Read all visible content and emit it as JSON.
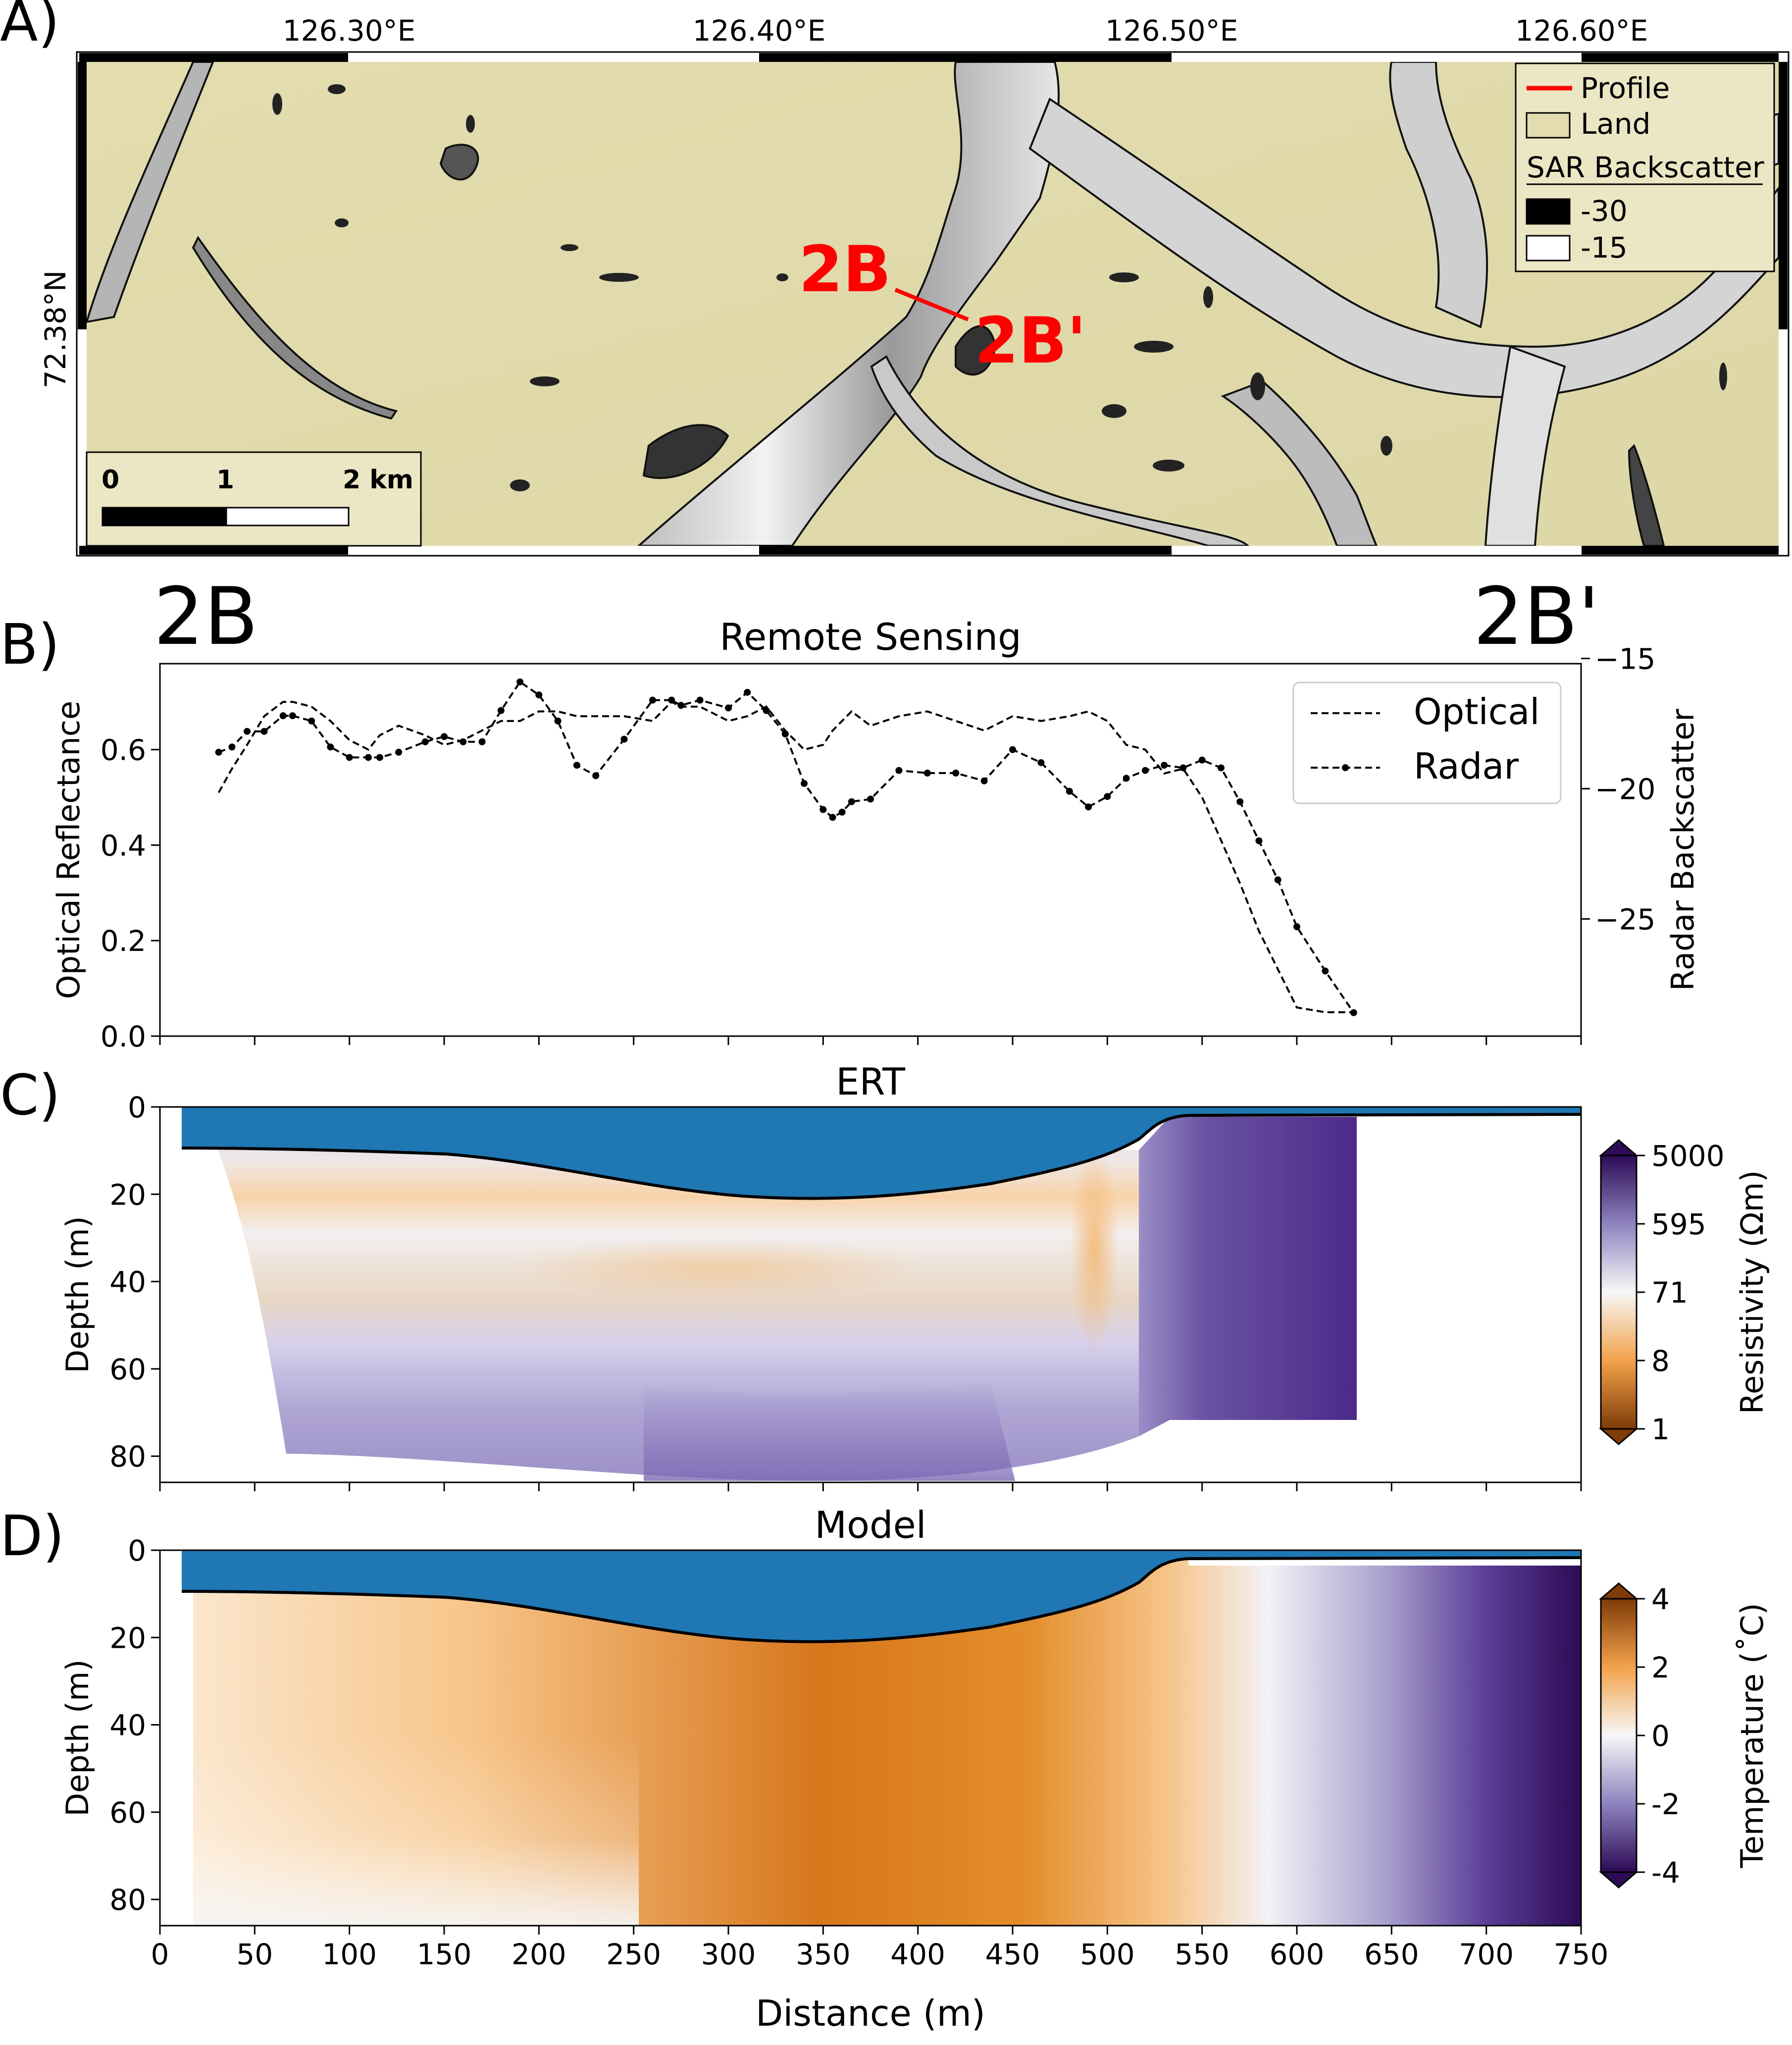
{
  "panels": {
    "a_label": "A)",
    "b_label": "B)",
    "c_label": "C)",
    "d_label": "D)"
  },
  "map": {
    "lon_ticks": [
      "126.30°E",
      "126.40°E",
      "126.50°E",
      "126.60°E"
    ],
    "lat_tick": "72.38°N",
    "profile_start": "2B",
    "profile_end": "2B'",
    "scalebar_labels": [
      "0",
      "1",
      "2 km"
    ],
    "legend": {
      "profile": "Profile",
      "land": "Land",
      "sar_title": "SAR Backscatter",
      "dark_value": "-30",
      "light_value": "-15"
    },
    "colors": {
      "land": "#e2dcae",
      "profile": "#ff0000"
    }
  },
  "endpoint_labels": {
    "start": "2B",
    "end": "2B'"
  },
  "chart_data": [
    {
      "type": "line",
      "title": "Remote Sensing",
      "xlabel": "",
      "ylabel": "Optical Reflectance",
      "y2label": "Radar Backscatter",
      "xlim": [
        0,
        750
      ],
      "ylim": [
        0,
        0.78
      ],
      "y2lim": [
        -29.5,
        -15.2
      ],
      "yticks": [
        0.0,
        0.2,
        0.4,
        0.6
      ],
      "ytick_labels": [
        "0.0",
        "0.2",
        "0.4",
        "0.6"
      ],
      "y2ticks": [
        -15,
        -20,
        -25
      ],
      "y2tick_labels": [
        "−15",
        "−20",
        "−25"
      ],
      "legend_position": "upper-right",
      "series": [
        {
          "name": "Optical",
          "axis": "left",
          "style": "dashed",
          "x": [
            31,
            38,
            46,
            55,
            65,
            70,
            80,
            90,
            100,
            110,
            116,
            126,
            140,
            150,
            160,
            170,
            180,
            190,
            200,
            210,
            220,
            230,
            245,
            260,
            270,
            275,
            285,
            300,
            310,
            320,
            330,
            340,
            350,
            355,
            360,
            365,
            375,
            390,
            405,
            420,
            435,
            450,
            465,
            480,
            490,
            500,
            510,
            520,
            530,
            540,
            550,
            560,
            570,
            580,
            590,
            600,
            615,
            630
          ],
          "y": [
            0.51,
            0.56,
            0.61,
            0.67,
            0.7,
            0.7,
            0.69,
            0.66,
            0.62,
            0.6,
            0.63,
            0.65,
            0.63,
            0.61,
            0.62,
            0.64,
            0.66,
            0.66,
            0.68,
            0.68,
            0.67,
            0.67,
            0.67,
            0.66,
            0.7,
            0.69,
            0.69,
            0.66,
            0.67,
            0.69,
            0.64,
            0.6,
            0.61,
            0.64,
            0.66,
            0.68,
            0.65,
            0.67,
            0.68,
            0.66,
            0.64,
            0.67,
            0.66,
            0.67,
            0.68,
            0.66,
            0.61,
            0.6,
            0.55,
            0.56,
            0.5,
            0.41,
            0.32,
            0.22,
            0.14,
            0.06,
            0.05,
            0.05
          ]
        },
        {
          "name": "Radar",
          "axis": "right",
          "style": "dashed-dots",
          "x": [
            31,
            38,
            46,
            55,
            65,
            70,
            80,
            90,
            100,
            110,
            116,
            126,
            140,
            150,
            160,
            170,
            180,
            190,
            200,
            210,
            220,
            230,
            245,
            260,
            270,
            275,
            285,
            300,
            310,
            320,
            330,
            340,
            350,
            355,
            360,
            365,
            375,
            390,
            405,
            420,
            435,
            450,
            465,
            480,
            490,
            500,
            510,
            520,
            530,
            540,
            550,
            560,
            570,
            580,
            590,
            600,
            615,
            630
          ],
          "y": [
            -18.6,
            -18.4,
            -17.8,
            -17.8,
            -17.2,
            -17.2,
            -17.4,
            -18.4,
            -18.8,
            -18.8,
            -18.8,
            -18.6,
            -18.2,
            -18.0,
            -18.2,
            -18.2,
            -17.0,
            -15.9,
            -16.4,
            -17.4,
            -19.1,
            -19.5,
            -18.1,
            -16.6,
            -16.6,
            -16.8,
            -16.6,
            -16.9,
            -16.3,
            -17.0,
            -17.9,
            -19.8,
            -20.8,
            -21.1,
            -20.9,
            -20.5,
            -20.4,
            -19.3,
            -19.4,
            -19.4,
            -19.7,
            -18.5,
            -19.0,
            -20.1,
            -20.7,
            -20.3,
            -19.6,
            -19.3,
            -19.1,
            -19.2,
            -18.9,
            -19.2,
            -20.5,
            -22.0,
            -23.5,
            -25.3,
            -27.0,
            -28.6
          ]
        }
      ]
    },
    {
      "type": "heatmap",
      "title": "ERT",
      "xlabel": "",
      "ylabel": "Depth (m)",
      "xlim": [
        0,
        750
      ],
      "ylim": [
        86,
        0
      ],
      "yticks": [
        0,
        20,
        40,
        60,
        80
      ],
      "colorbar_label": "Resistivity (Ωm)",
      "colorbar_ticks": [
        "5000",
        "595",
        "71",
        "8",
        "1"
      ],
      "colormap": "PuOr",
      "water_color": "#1f77b4"
    },
    {
      "type": "heatmap",
      "title": "Model",
      "xlabel": "Distance (m)",
      "ylabel": "Depth (m)",
      "xlim": [
        0,
        750
      ],
      "ylim": [
        86,
        0
      ],
      "xticks": [
        0,
        50,
        100,
        150,
        200,
        250,
        300,
        350,
        400,
        450,
        500,
        550,
        600,
        650,
        700,
        750
      ],
      "yticks": [
        0,
        20,
        40,
        60,
        80
      ],
      "colorbar_label": "Temperature (˚C)",
      "colorbar_ticks": [
        "4",
        "2",
        "0",
        "-2",
        "-4"
      ],
      "colormap": "PuOr",
      "water_color": "#1f77b4"
    }
  ]
}
